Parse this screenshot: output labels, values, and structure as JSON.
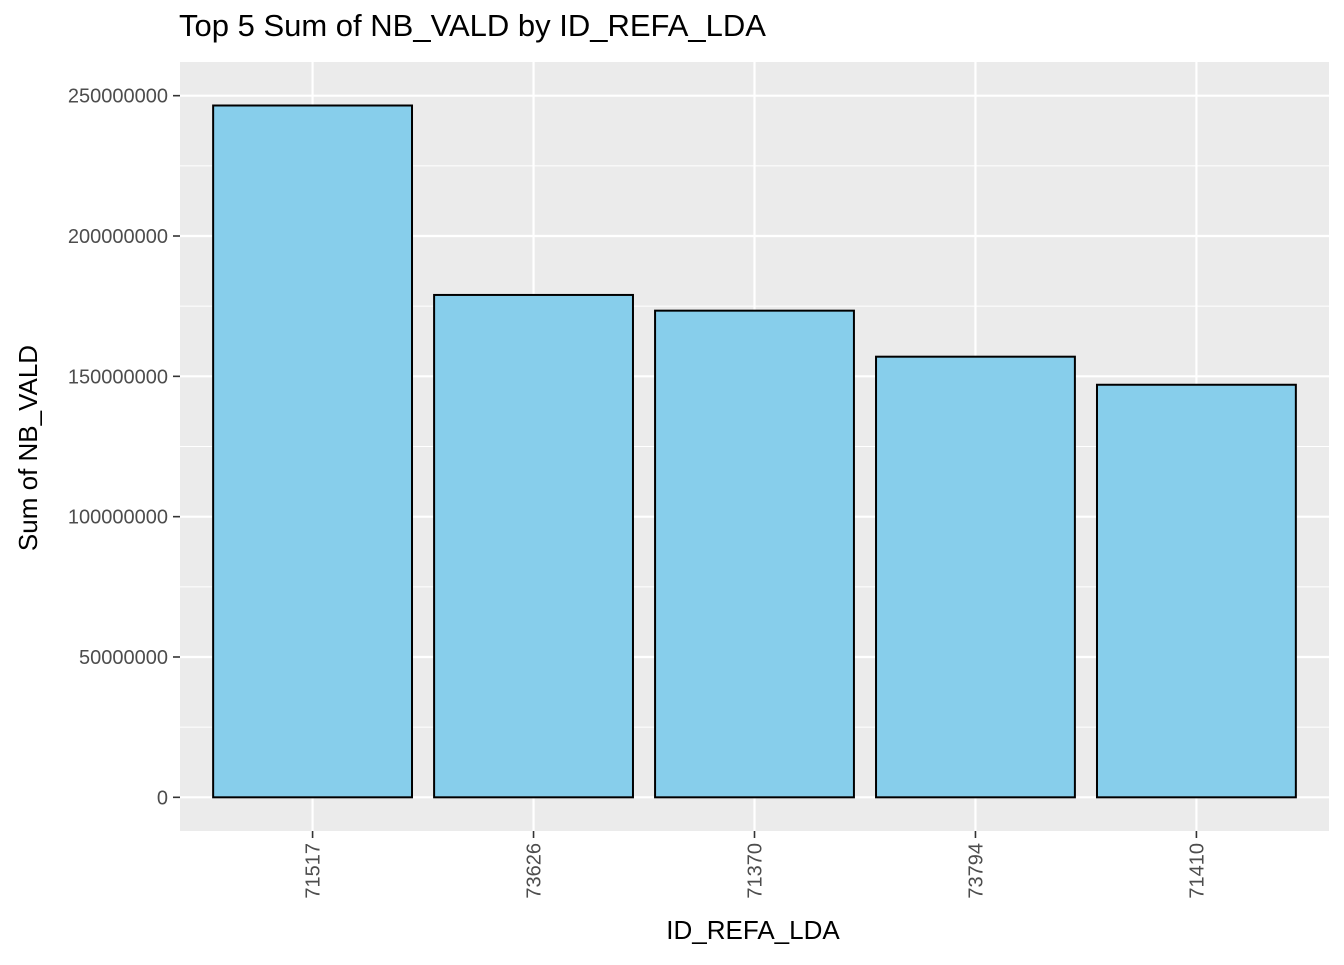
{
  "chart_data": {
    "type": "bar",
    "title": "Top 5 Sum of NB_VALD by ID_REFA_LDA",
    "xlabel": "ID_REFA_LDA",
    "ylabel": "Sum of NB_VALD",
    "categories": [
      "71517",
      "73626",
      "71370",
      "73794",
      "71410"
    ],
    "values": [
      246500000,
      179000000,
      173400000,
      157000000,
      147000000
    ],
    "ylim": [
      -12000000,
      262000000
    ],
    "yticks": [
      0,
      50000000,
      100000000,
      150000000,
      200000000,
      250000000
    ],
    "ytick_labels": [
      "0",
      "50000000",
      "100000000",
      "150000000",
      "200000000",
      "250000000"
    ],
    "grid": true,
    "legend": "none",
    "colors": {
      "bar_fill": "#87CEEB",
      "bar_stroke": "#000000",
      "panel_background": "#EBEBEB",
      "grid_line": "#FFFFFF"
    }
  }
}
